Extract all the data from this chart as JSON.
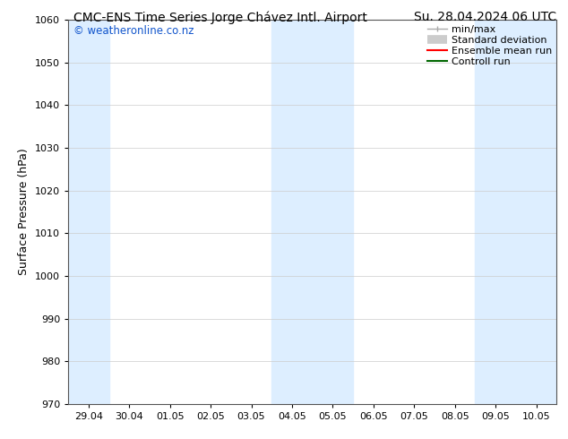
{
  "title_left": "CMC-ENS Time Series Jorge Chávez Intl. Airport",
  "title_right": "Su. 28.04.2024 06 UTC",
  "ylabel": "Surface Pressure (hPa)",
  "ylim": [
    970,
    1060
  ],
  "yticks": [
    970,
    980,
    990,
    1000,
    1010,
    1020,
    1030,
    1040,
    1050,
    1060
  ],
  "x_labels": [
    "29.04",
    "30.04",
    "01.05",
    "02.05",
    "03.05",
    "04.05",
    "05.05",
    "06.05",
    "07.05",
    "08.05",
    "09.05",
    "10.05"
  ],
  "x_positions": [
    0,
    1,
    2,
    3,
    4,
    5,
    6,
    7,
    8,
    9,
    10,
    11
  ],
  "shaded_columns": [
    0,
    5,
    6,
    10,
    11
  ],
  "shade_color": "#ddeeff",
  "watermark_text": "© weatheronline.co.nz",
  "watermark_color": "#1155cc",
  "background_color": "#ffffff",
  "grid_color": "#cccccc",
  "spine_color": "#555555",
  "tick_label_fontsize": 8,
  "title_fontsize": 10,
  "ylabel_fontsize": 9,
  "legend_fontsize": 8
}
